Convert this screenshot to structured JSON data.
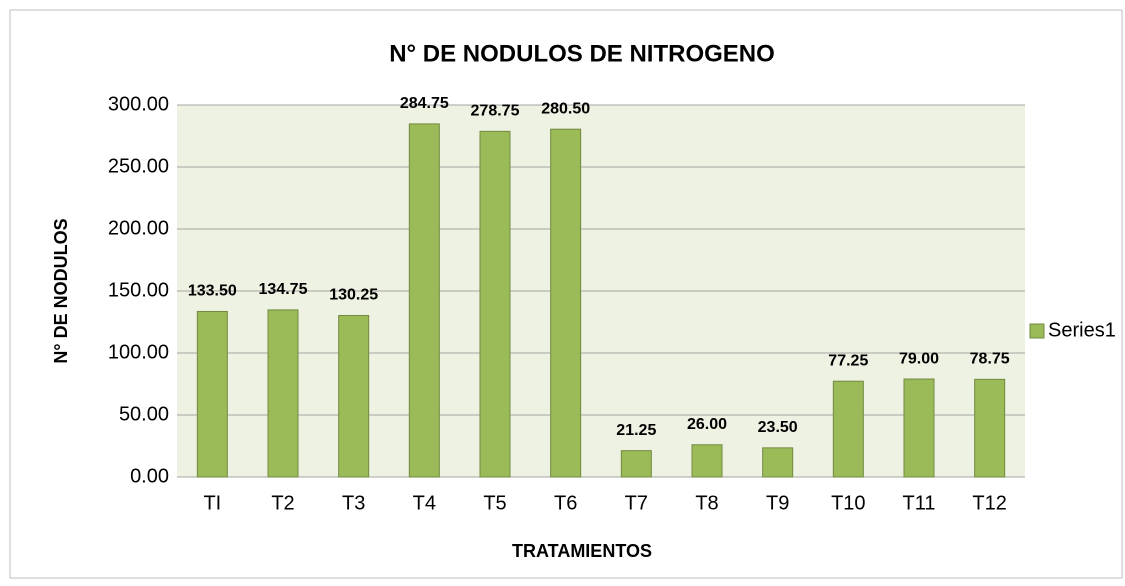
{
  "chart_data": {
    "type": "bar",
    "title": "N° DE NODULOS DE NITROGENO",
    "x_label": "TRATAMIENTOS",
    "y_label": "N° DE NODULOS",
    "categories": [
      "TI",
      "T2",
      "T3",
      "T4",
      "T5",
      "T6",
      "T7",
      "T8",
      "T9",
      "T10",
      "T11",
      "T12"
    ],
    "series": [
      {
        "name": "Series1",
        "color": "#9bbb59",
        "values": [
          133.5,
          134.75,
          130.25,
          284.75,
          278.75,
          280.5,
          21.25,
          26,
          23.5,
          77.25,
          79,
          78.75
        ],
        "value_labels": [
          "133.50",
          "134.75",
          "130.25",
          "284.75",
          "278.75",
          "280.50",
          "21.25",
          "26.00",
          "23.50",
          "77.25",
          "79.00",
          "78.75"
        ]
      }
    ],
    "ylim": [
      0,
      300
    ],
    "yticks": [
      {
        "value": 0,
        "label": "0.00"
      },
      {
        "value": 50,
        "label": "50.00"
      },
      {
        "value": 100,
        "label": "100.00"
      },
      {
        "value": 150,
        "label": "150.00"
      },
      {
        "value": 200,
        "label": "200.00"
      },
      {
        "value": 250,
        "label": "250.00"
      },
      {
        "value": 300,
        "label": "300.00"
      }
    ],
    "grid": true,
    "legend": "right"
  }
}
